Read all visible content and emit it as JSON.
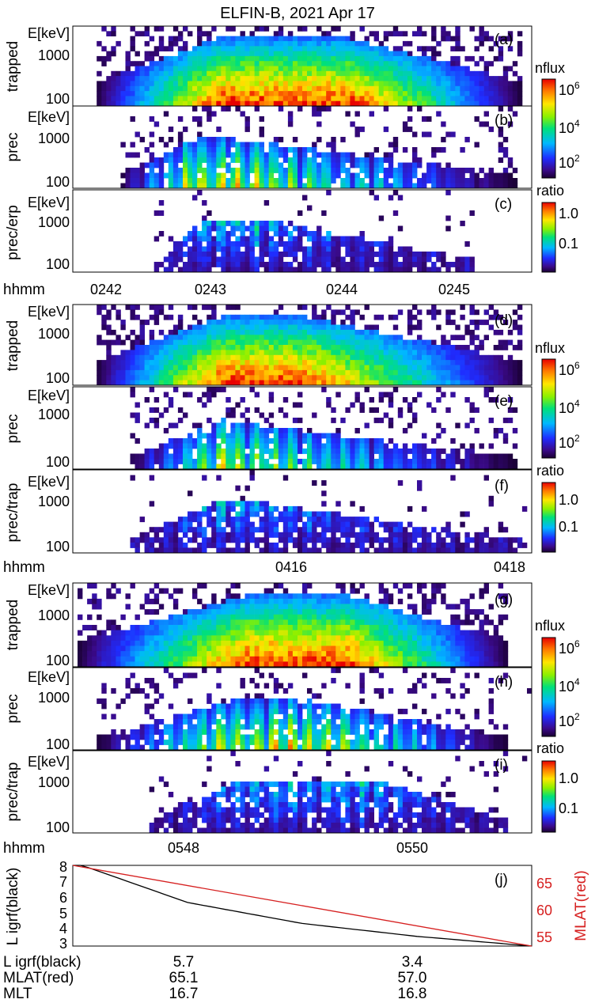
{
  "title": "ELFIN-B, 2021 Apr 17",
  "colors": {
    "mlat_line": "#d62020",
    "l_line": "#000000"
  },
  "chart_data": [
    {
      "type": "heatmap",
      "group": "pass-1",
      "panels": [
        {
          "id": "(a)",
          "ylabel": "trapped",
          "yunit": "E[keV]",
          "yticks": [
            "1000",
            "100"
          ],
          "colorbar": {
            "label": "nflux",
            "ticks": [
              "10^6",
              "10^4",
              "10^2"
            ]
          },
          "shape": [
            0.05,
            0.32,
            0.6,
            0.98
          ]
        },
        {
          "id": "(b)",
          "ylabel": "prec",
          "yunit": "E[keV]",
          "yticks": [
            "1000",
            "100"
          ],
          "colorbar_ref": "nflux",
          "shape": [
            0.1,
            0.27,
            0.35,
            0.97
          ]
        },
        {
          "id": "(c)",
          "ylabel": "prec/erp",
          "yunit": "E[keV]",
          "yticks": [
            "1000",
            "100"
          ],
          "colorbar": {
            "label": "ratio",
            "ticks": [
              "1.0",
              "0.1"
            ]
          },
          "shape": [
            0.18,
            0.29,
            0.4,
            0.88
          ]
        }
      ],
      "xaxis": {
        "label": "hhmm",
        "ticks": [
          "0242",
          "0243",
          "0244",
          "0245"
        ]
      }
    },
    {
      "type": "heatmap",
      "group": "pass-2",
      "panels": [
        {
          "id": "(d)",
          "ylabel": "trapped",
          "yunit": "E[keV]",
          "yticks": [
            "1000",
            "100"
          ],
          "colorbar": {
            "label": "nflux",
            "ticks": [
              "10^6",
              "10^4",
              "10^2"
            ]
          },
          "shape": [
            0.05,
            0.33,
            0.5,
            0.98
          ]
        },
        {
          "id": "(e)",
          "ylabel": "prec",
          "yunit": "E[keV]",
          "yticks": [
            "1000",
            "100"
          ],
          "colorbar_ref": "nflux",
          "shape": [
            0.12,
            0.33,
            0.3,
            0.97
          ]
        },
        {
          "id": "(f)",
          "ylabel": "prec/trap",
          "yunit": "E[keV]",
          "yticks": [
            "1000",
            "100"
          ],
          "colorbar": {
            "label": "ratio",
            "ticks": [
              "1.0",
              "0.1"
            ]
          },
          "shape": [
            0.12,
            0.33,
            0.35,
            0.99
          ]
        }
      ],
      "xaxis": {
        "label": "hhmm",
        "ticks": [
          "0416",
          "0418"
        ]
      }
    },
    {
      "type": "heatmap",
      "group": "pass-3",
      "panels": [
        {
          "id": "(g)",
          "ylabel": "trapped",
          "yunit": "E[keV]",
          "yticks": [
            "1000",
            "100"
          ],
          "colorbar": {
            "label": "nflux",
            "ticks": [
              "10^6",
              "10^4",
              "10^2"
            ]
          },
          "shape": [
            0.01,
            0.38,
            0.6,
            0.95
          ]
        },
        {
          "id": "(h)",
          "ylabel": "prec",
          "yunit": "E[keV]",
          "yticks": [
            "1000",
            "100"
          ],
          "colorbar_ref": "nflux",
          "shape": [
            0.05,
            0.35,
            0.52,
            0.95
          ]
        },
        {
          "id": "(i)",
          "ylabel": "prec/trap",
          "yunit": "E[keV]",
          "yticks": [
            "1000",
            "100"
          ],
          "colorbar": {
            "label": "ratio",
            "ticks": [
              "1.0",
              "0.1"
            ]
          },
          "shape": [
            0.17,
            0.36,
            0.66,
            0.95
          ]
        }
      ],
      "xaxis": {
        "label": "hhmm",
        "ticks": [
          "0548",
          "0550"
        ]
      }
    },
    {
      "type": "line",
      "panel_id": "(j)",
      "ylabel_left": "L igrf(black)",
      "ylabel_right": "MLAT(red)",
      "ylim_left": [
        3,
        8
      ],
      "ylim_right": [
        53,
        69
      ],
      "yticks_left": [
        "8",
        "7",
        "6",
        "5",
        "4",
        "3"
      ],
      "yticks_right": [
        "65",
        "60",
        "55"
      ],
      "series": [
        {
          "name": "L igrf(black)",
          "x": [
            0,
            0.25,
            0.5,
            0.75,
            1.0
          ],
          "values": [
            8.2,
            5.7,
            4.4,
            3.6,
            3.0
          ]
        },
        {
          "name": "MLAT(red)",
          "x": [
            0,
            1.0
          ],
          "values": [
            69,
            53
          ]
        }
      ],
      "table": {
        "row_labels": [
          "L igrf(black)",
          "MLAT(red)",
          "MLT"
        ],
        "columns": [
          {
            "values": [
              "5.7",
              "65.1",
              "16.7"
            ]
          },
          {
            "values": [
              "3.4",
              "57.0",
              "16.8"
            ]
          }
        ]
      }
    }
  ]
}
